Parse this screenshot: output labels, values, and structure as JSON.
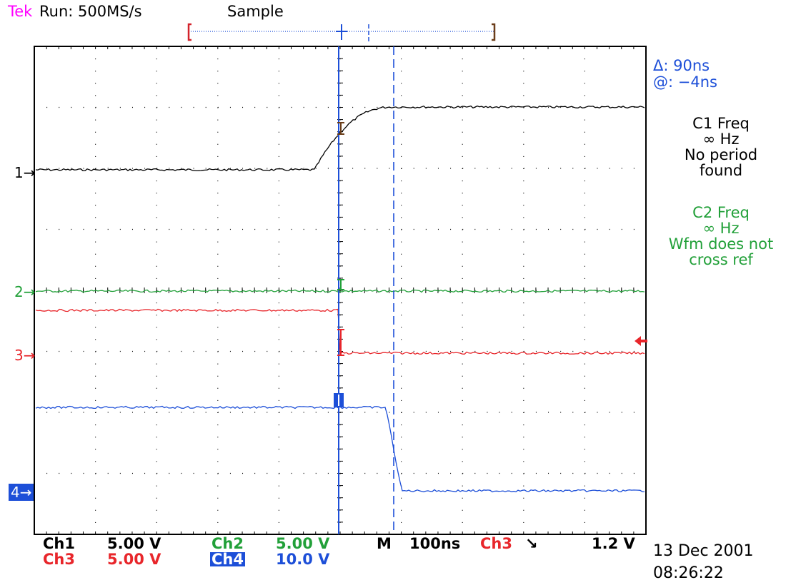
{
  "header": {
    "brand": "Tek",
    "status": "Run: 500MS/s",
    "mode": "Sample"
  },
  "cursor_readout": {
    "delta": "Δ: 90ns",
    "at": "@: −4ns"
  },
  "measurements": [
    {
      "title": "C1 Freq",
      "value": "∞ Hz",
      "note1": "No period",
      "note2": "found",
      "color": "#000000"
    },
    {
      "title": "C2 Freq",
      "value": "∞ Hz",
      "note1": "Wfm does not",
      "note2": "cross ref",
      "color": "#22a039"
    }
  ],
  "channel_markers": [
    "1→",
    "2→",
    "3→",
    "4→"
  ],
  "footer": {
    "ch1_label": "Ch1",
    "ch1_scale": "5.00 V",
    "ch2_label": "Ch2",
    "ch2_scale": "5.00 V",
    "ch3_label": "Ch3",
    "ch3_scale": "5.00 V",
    "ch4_label": "Ch4",
    "ch4_scale": "10.0 V",
    "timebase_label": "M",
    "timebase": "100ns",
    "trigger_source": "Ch3",
    "trigger_slope": "↘",
    "trigger_level": "1.2 V"
  },
  "datetime": {
    "date": "13 Dec 2001",
    "time": "08:26:22"
  },
  "colors": {
    "ch1": "#000000",
    "ch2": "#22a039",
    "ch3": "#e8262b",
    "ch4": "#1d4fd8",
    "brand": "#ff00ff"
  }
}
